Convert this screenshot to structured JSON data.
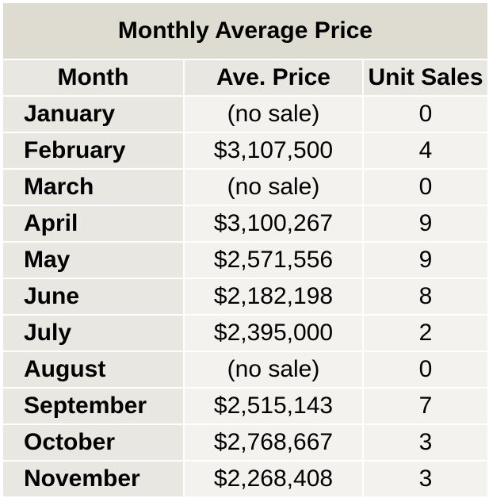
{
  "chart_data": {
    "type": "table",
    "title": "Monthly Average Price",
    "columns": [
      "Month",
      "Ave. Price",
      "Unit Sales"
    ],
    "rows": [
      {
        "month": "January",
        "price": "(no sale)",
        "units": "0"
      },
      {
        "month": "February",
        "price": "$3,107,500",
        "units": "4"
      },
      {
        "month": "March",
        "price": "(no sale)",
        "units": "0"
      },
      {
        "month": "April",
        "price": "$3,100,267",
        "units": "9"
      },
      {
        "month": "May",
        "price": "$2,571,556",
        "units": "9"
      },
      {
        "month": "June",
        "price": "$2,182,198",
        "units": "8"
      },
      {
        "month": "July",
        "price": "$2,395,000",
        "units": "2"
      },
      {
        "month": "August",
        "price": "(no sale)",
        "units": "0"
      },
      {
        "month": "September",
        "price": "$2,515,143",
        "units": "7"
      },
      {
        "month": "October",
        "price": "$2,768,667",
        "units": "3"
      },
      {
        "month": "November",
        "price": "$2,268,408",
        "units": "3"
      }
    ]
  }
}
